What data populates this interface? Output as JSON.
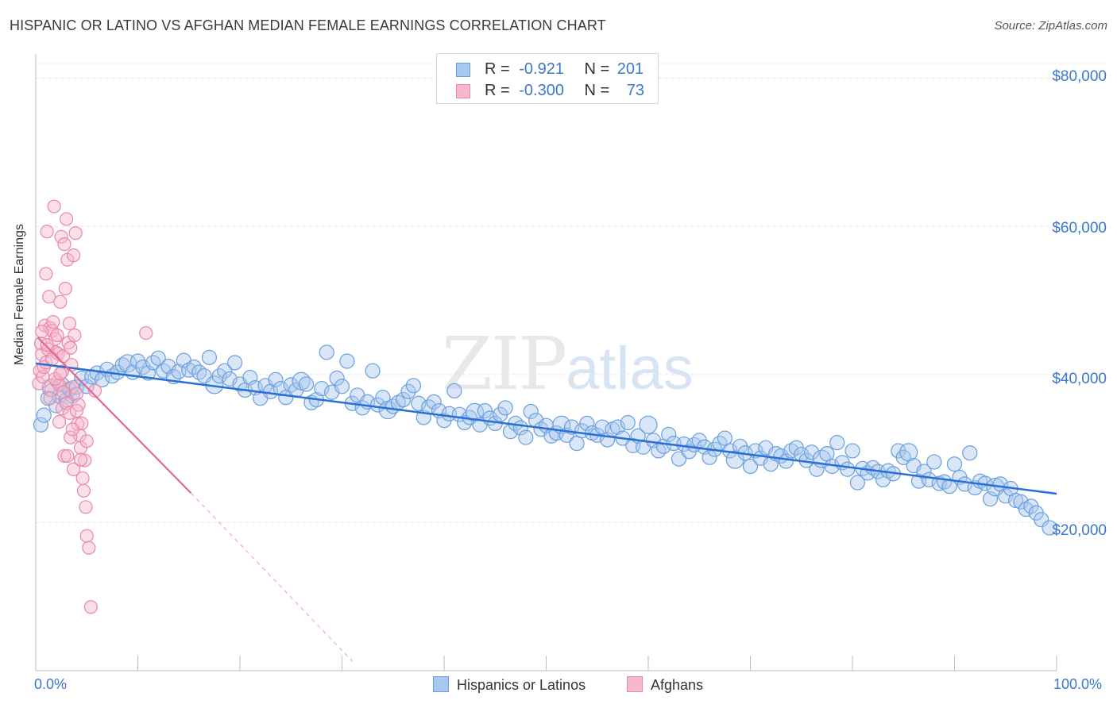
{
  "title": "HISPANIC OR LATINO VS AFGHAN MEDIAN FEMALE EARNINGS CORRELATION CHART",
  "source": "Source: ZipAtlas.com",
  "watermark": {
    "part1": "ZIP",
    "part2": "atlas"
  },
  "legend_top": [
    {
      "r_label": "R =",
      "r_value": "-0.921",
      "n_label": "N =",
      "n_value": "201",
      "color": "#a9c8ef",
      "border": "#6a9fdc"
    },
    {
      "r_label": "R =",
      "r_value": "-0.300",
      "n_label": "N =",
      "n_value": "73",
      "color": "#f6b8cb",
      "border": "#e987a7"
    }
  ],
  "legend_bottom": [
    {
      "label": "Hispanics or Latinos",
      "color": "#a9c8ef",
      "border": "#6a9fdc"
    },
    {
      "label": "Afghans",
      "color": "#f6b8cb",
      "border": "#e987a7"
    }
  ],
  "chart_data": {
    "type": "scatter",
    "title": "HISPANIC OR LATINO VS AFGHAN MEDIAN FEMALE EARNINGS CORRELATION CHART",
    "xlabel": "",
    "ylabel": "Median Female Earnings",
    "xlim": [
      0,
      100
    ],
    "ylim": [
      0,
      82000
    ],
    "x_tick_labels": [
      "0.0%",
      "100.0%"
    ],
    "y_ticks": [
      20000,
      40000,
      60000,
      80000
    ],
    "y_tick_labels": [
      "$20,000",
      "$40,000",
      "$60,000",
      "$80,000"
    ],
    "grid": true,
    "series": [
      {
        "name": "Hispanics or Latinos",
        "color": "#6a9fdc",
        "fill": "#a9c8ef",
        "trend": {
          "x": [
            0,
            100
          ],
          "y": [
            41500,
            23900
          ],
          "color": "#2a6fd4"
        },
        "points": [
          [
            0.5,
            33200
          ],
          [
            0.8,
            34500
          ],
          [
            1.2,
            36800
          ],
          [
            1.5,
            38200
          ],
          [
            2.0,
            35800
          ],
          [
            2.3,
            37100
          ],
          [
            2.6,
            38600
          ],
          [
            3.0,
            36600
          ],
          [
            3.3,
            38000
          ],
          [
            3.6,
            37100
          ],
          [
            4.0,
            38300
          ],
          [
            4.5,
            39500
          ],
          [
            5.0,
            38400
          ],
          [
            5.5,
            39700
          ],
          [
            6.0,
            40200
          ],
          [
            6.5,
            39300
          ],
          [
            7.0,
            40700
          ],
          [
            7.5,
            39800
          ],
          [
            8.0,
            40300
          ],
          [
            8.5,
            41300
          ],
          [
            9.0,
            41500
          ],
          [
            9.5,
            40300
          ],
          [
            10.0,
            41800
          ],
          [
            10.5,
            41000
          ],
          [
            11.0,
            40200
          ],
          [
            11.5,
            41600
          ],
          [
            12.0,
            42200
          ],
          [
            12.5,
            40500
          ],
          [
            13.0,
            41100
          ],
          [
            13.5,
            39700
          ],
          [
            14.0,
            40400
          ],
          [
            14.5,
            41900
          ],
          [
            15.0,
            40600
          ],
          [
            15.5,
            41000
          ],
          [
            16.0,
            40300
          ],
          [
            16.5,
            39800
          ],
          [
            17.0,
            42300
          ],
          [
            17.5,
            38600
          ],
          [
            18.0,
            39800
          ],
          [
            18.5,
            40500
          ],
          [
            19.0,
            39400
          ],
          [
            19.5,
            41600
          ],
          [
            20.0,
            38700
          ],
          [
            20.5,
            37900
          ],
          [
            21.0,
            39600
          ],
          [
            21.5,
            38200
          ],
          [
            22.0,
            36800
          ],
          [
            22.5,
            38500
          ],
          [
            23.0,
            37700
          ],
          [
            23.5,
            39300
          ],
          [
            24.0,
            38100
          ],
          [
            24.5,
            36900
          ],
          [
            25.0,
            38600
          ],
          [
            25.5,
            37900
          ],
          [
            26.0,
            39100
          ],
          [
            26.5,
            38700
          ],
          [
            27.0,
            36200
          ],
          [
            27.5,
            36600
          ],
          [
            28.0,
            38100
          ],
          [
            28.5,
            43000
          ],
          [
            29.0,
            37600
          ],
          [
            29.5,
            39500
          ],
          [
            30.0,
            38400
          ],
          [
            30.5,
            41800
          ],
          [
            31.0,
            36100
          ],
          [
            31.5,
            37200
          ],
          [
            32.0,
            35500
          ],
          [
            32.5,
            36300
          ],
          [
            33.0,
            40500
          ],
          [
            33.5,
            35900
          ],
          [
            34.0,
            36900
          ],
          [
            34.5,
            35200
          ],
          [
            35.0,
            35700
          ],
          [
            35.5,
            36200
          ],
          [
            36.0,
            36600
          ],
          [
            36.5,
            37700
          ],
          [
            37.0,
            38500
          ],
          [
            37.5,
            36100
          ],
          [
            38.0,
            34200
          ],
          [
            38.5,
            35600
          ],
          [
            39.0,
            36300
          ],
          [
            39.5,
            35100
          ],
          [
            40.0,
            33800
          ],
          [
            40.5,
            34700
          ],
          [
            41.0,
            37800
          ],
          [
            41.5,
            34600
          ],
          [
            42.0,
            33500
          ],
          [
            42.5,
            34200
          ],
          [
            43.0,
            34900
          ],
          [
            43.5,
            33200
          ],
          [
            44.0,
            35100
          ],
          [
            44.5,
            34100
          ],
          [
            45.0,
            33400
          ],
          [
            45.5,
            34600
          ],
          [
            46.0,
            35500
          ],
          [
            46.5,
            32300
          ],
          [
            47.0,
            33400
          ],
          [
            47.5,
            32800
          ],
          [
            48.0,
            31500
          ],
          [
            48.5,
            35000
          ],
          [
            49.0,
            33800
          ],
          [
            49.5,
            32600
          ],
          [
            50.0,
            33100
          ],
          [
            50.5,
            31700
          ],
          [
            51.0,
            32100
          ],
          [
            51.5,
            33200
          ],
          [
            52.0,
            31800
          ],
          [
            52.5,
            32900
          ],
          [
            53.0,
            30700
          ],
          [
            53.5,
            32400
          ],
          [
            54.0,
            33400
          ],
          [
            54.5,
            32100
          ],
          [
            55.0,
            31800
          ],
          [
            55.5,
            32900
          ],
          [
            56.0,
            31200
          ],
          [
            56.5,
            32600
          ],
          [
            57.0,
            32900
          ],
          [
            57.5,
            31400
          ],
          [
            58.0,
            33500
          ],
          [
            58.5,
            30400
          ],
          [
            59.0,
            31700
          ],
          [
            59.5,
            30200
          ],
          [
            60.0,
            33200
          ],
          [
            60.5,
            31100
          ],
          [
            61.0,
            29700
          ],
          [
            61.5,
            30300
          ],
          [
            62.0,
            31900
          ],
          [
            62.5,
            30700
          ],
          [
            63.0,
            28600
          ],
          [
            63.5,
            30600
          ],
          [
            64.0,
            29600
          ],
          [
            64.5,
            30500
          ],
          [
            65.0,
            31100
          ],
          [
            65.5,
            30200
          ],
          [
            66.0,
            28800
          ],
          [
            66.5,
            29900
          ],
          [
            67.0,
            30700
          ],
          [
            67.5,
            31400
          ],
          [
            68.0,
            29700
          ],
          [
            68.5,
            28500
          ],
          [
            69.0,
            30300
          ],
          [
            69.5,
            29400
          ],
          [
            70.0,
            27600
          ],
          [
            70.5,
            29700
          ],
          [
            71.0,
            28700
          ],
          [
            71.5,
            30100
          ],
          [
            72.0,
            27900
          ],
          [
            72.5,
            29300
          ],
          [
            73.0,
            29000
          ],
          [
            73.5,
            28300
          ],
          [
            74.0,
            29700
          ],
          [
            74.5,
            30100
          ],
          [
            75.0,
            29200
          ],
          [
            75.5,
            28400
          ],
          [
            76.0,
            29500
          ],
          [
            76.5,
            27200
          ],
          [
            77.0,
            28600
          ],
          [
            77.5,
            29300
          ],
          [
            78.0,
            27600
          ],
          [
            78.5,
            30800
          ],
          [
            79.0,
            28100
          ],
          [
            79.5,
            27200
          ],
          [
            80.0,
            29700
          ],
          [
            80.5,
            25400
          ],
          [
            81.0,
            27300
          ],
          [
            81.5,
            26700
          ],
          [
            82.0,
            27400
          ],
          [
            82.5,
            26900
          ],
          [
            83.0,
            25800
          ],
          [
            83.5,
            27000
          ],
          [
            84.0,
            26600
          ],
          [
            84.5,
            29700
          ],
          [
            85.0,
            28800
          ],
          [
            85.5,
            29500
          ],
          [
            86.0,
            27700
          ],
          [
            86.5,
            25600
          ],
          [
            87.0,
            26900
          ],
          [
            87.5,
            25800
          ],
          [
            88.0,
            28200
          ],
          [
            88.5,
            25300
          ],
          [
            89.0,
            25500
          ],
          [
            89.5,
            24900
          ],
          [
            90.0,
            27900
          ],
          [
            90.5,
            26100
          ],
          [
            91.0,
            25200
          ],
          [
            91.5,
            29400
          ],
          [
            92.0,
            24700
          ],
          [
            92.5,
            25600
          ],
          [
            93.0,
            25300
          ],
          [
            93.5,
            23200
          ],
          [
            94.0,
            24800
          ],
          [
            94.5,
            25200
          ],
          [
            95.0,
            23600
          ],
          [
            95.5,
            24600
          ],
          [
            96.0,
            23000
          ],
          [
            96.5,
            22800
          ],
          [
            97.0,
            21800
          ],
          [
            97.5,
            22200
          ],
          [
            98.0,
            21300
          ],
          [
            98.5,
            20400
          ],
          [
            99.3,
            19300
          ]
        ]
      },
      {
        "name": "Afghans",
        "color": "#e987a7",
        "fill": "#f6b8cb",
        "trend": {
          "x": [
            0.2,
            15.2
          ],
          "y": [
            45000,
            24000
          ],
          "extended_x": [
            15.2,
            31.0
          ],
          "extended_y": [
            24000,
            1300
          ],
          "color": "#e36792"
        },
        "points": [
          [
            0.3,
            38800
          ],
          [
            0.4,
            40500
          ],
          [
            0.5,
            44200
          ],
          [
            0.6,
            42700
          ],
          [
            0.7,
            39700
          ],
          [
            0.8,
            41000
          ],
          [
            0.9,
            46600
          ],
          [
            1.0,
            53600
          ],
          [
            1.1,
            59300
          ],
          [
            1.2,
            43400
          ],
          [
            1.3,
            50500
          ],
          [
            1.4,
            46300
          ],
          [
            1.5,
            37900
          ],
          [
            1.6,
            45900
          ],
          [
            1.7,
            47100
          ],
          [
            1.8,
            62700
          ],
          [
            1.9,
            44800
          ],
          [
            2.0,
            43000
          ],
          [
            2.1,
            39000
          ],
          [
            2.2,
            42800
          ],
          [
            2.3,
            38600
          ],
          [
            2.4,
            49800
          ],
          [
            2.5,
            58600
          ],
          [
            2.6,
            40400
          ],
          [
            2.7,
            42500
          ],
          [
            2.8,
            57600
          ],
          [
            2.9,
            51600
          ],
          [
            3.0,
            61000
          ],
          [
            3.1,
            55500
          ],
          [
            3.2,
            44300
          ],
          [
            3.3,
            46900
          ],
          [
            3.4,
            43600
          ],
          [
            3.5,
            41300
          ],
          [
            3.6,
            38300
          ],
          [
            3.7,
            56100
          ],
          [
            3.8,
            45300
          ],
          [
            3.9,
            59100
          ],
          [
            4.0,
            37400
          ],
          [
            4.1,
            33300
          ],
          [
            4.2,
            35900
          ],
          [
            4.3,
            31800
          ],
          [
            4.4,
            30100
          ],
          [
            4.5,
            33400
          ],
          [
            4.6,
            26000
          ],
          [
            4.7,
            24300
          ],
          [
            4.8,
            28400
          ],
          [
            4.9,
            22100
          ],
          [
            5.0,
            18200
          ],
          [
            5.2,
            16600
          ],
          [
            5.4,
            8600
          ],
          [
            0.6,
            45800
          ],
          [
            1.0,
            41600
          ],
          [
            1.4,
            36800
          ],
          [
            1.9,
            39400
          ],
          [
            2.3,
            33600
          ],
          [
            2.6,
            35400
          ],
          [
            2.8,
            29000
          ],
          [
            3.1,
            29000
          ],
          [
            3.4,
            31500
          ],
          [
            3.7,
            27200
          ],
          [
            1.1,
            44000
          ],
          [
            1.6,
            42100
          ],
          [
            2.1,
            45300
          ],
          [
            2.4,
            40100
          ],
          [
            2.7,
            37600
          ],
          [
            3.0,
            36100
          ],
          [
            3.3,
            34800
          ],
          [
            3.6,
            32600
          ],
          [
            4.0,
            35100
          ],
          [
            4.4,
            28500
          ],
          [
            5.0,
            31000
          ],
          [
            5.8,
            37800
          ],
          [
            10.8,
            45600
          ]
        ]
      }
    ]
  }
}
